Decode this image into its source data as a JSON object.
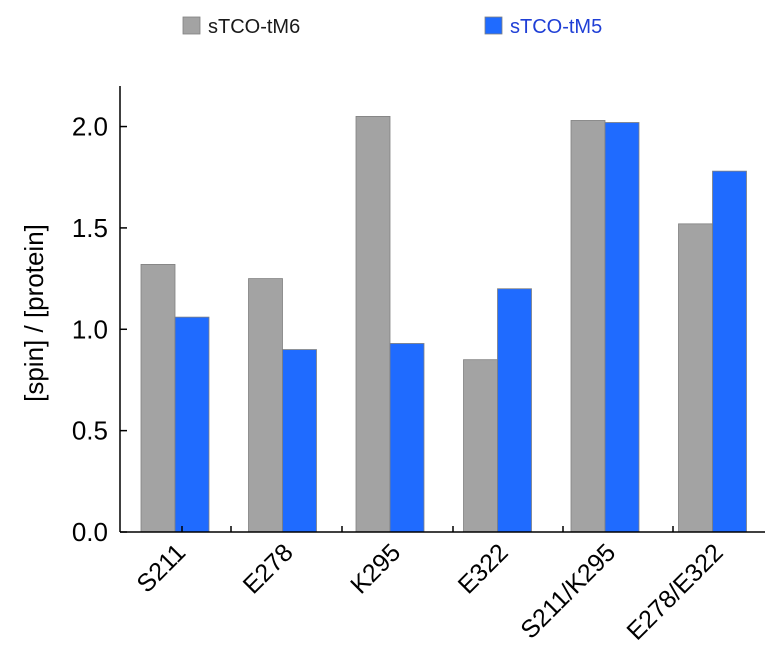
{
  "chart_data": {
    "type": "bar",
    "title": "",
    "xlabel": "",
    "ylabel": "[spin] / [protein]",
    "categories": [
      "S211",
      "E278",
      "K295",
      "E322",
      "S211/K295",
      "E278/E322"
    ],
    "series": [
      {
        "name": "sTCO-tM6",
        "color": "#a3a3a3",
        "values": [
          1.32,
          1.25,
          2.05,
          0.85,
          2.03,
          1.52
        ]
      },
      {
        "name": "sTCO-tM5",
        "color": "#1f6bff",
        "values": [
          1.06,
          0.9,
          0.93,
          1.2,
          2.02,
          1.78
        ]
      }
    ],
    "ylim": [
      0,
      2.2
    ],
    "yticks": [
      "0.0",
      "0.5",
      "1.0",
      "1.5",
      "2.0"
    ],
    "grid": false,
    "legend_position": "top"
  },
  "colors": {
    "legend_text_1": "#1a1a1a",
    "legend_text_2": "#1f3fd6",
    "axis": "#000000"
  }
}
